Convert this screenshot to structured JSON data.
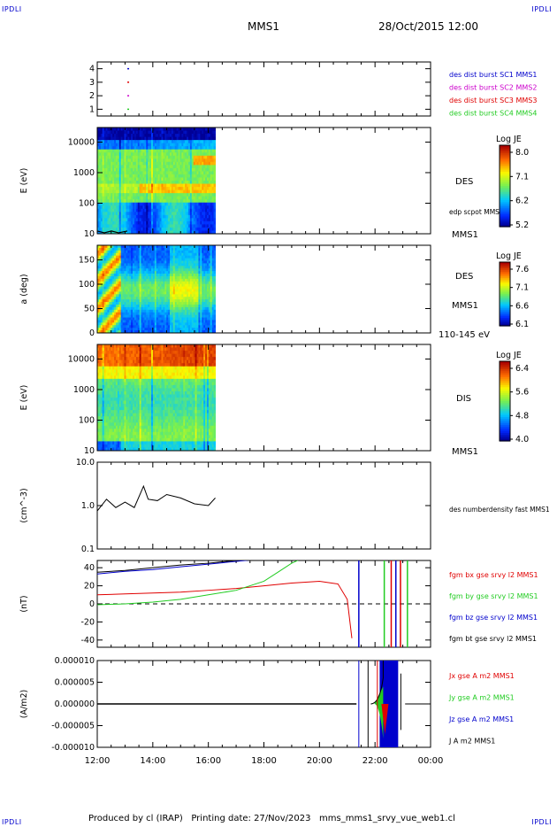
{
  "corner_tl": "IPDLI",
  "corner_tr": "IPDLI",
  "corner_bl": "IPDLI",
  "corner_br": "IPDLI",
  "header": {
    "spacecraft": "MMS1",
    "datetime": "28/Oct/2015 12:00"
  },
  "footer": {
    "text": "Produced by cl (IRAP)   Printing date: 27/Nov/2023   mms_mms1_srvy_vue_web1.cl"
  },
  "colors": {
    "red": "#e00000",
    "green": "#22cc22",
    "blue": "#0000cc",
    "magenta": "#cc00cc",
    "black": "#000000"
  },
  "chart_data": [
    {
      "panel": "burst-intervals",
      "type": "scatter",
      "yticks": [
        "1",
        "2",
        "3",
        "4"
      ],
      "ylim": [
        0.5,
        4.5
      ],
      "legend": [
        {
          "label": "des dist burst SC1 MMS1",
          "color": "#0000cc"
        },
        {
          "label": "des dist burst SC2 MMS2",
          "color": "#cc00cc"
        },
        {
          "label": "des dist burst SC3 MMS3",
          "color": "#e00000"
        },
        {
          "label": "des dist burst SC4 MMS4",
          "color": "#22cc22"
        }
      ],
      "points": [
        {
          "x": "13:05",
          "y": 4,
          "color": "#0000cc"
        },
        {
          "x": "13:05",
          "y": 3,
          "color": "#e00000"
        },
        {
          "x": "13:05",
          "y": 2,
          "color": "#cc00cc"
        },
        {
          "x": "13:05",
          "y": 1,
          "color": "#22cc22"
        }
      ]
    },
    {
      "panel": "des-energy-spectrogram",
      "type": "heatmap",
      "ylabel": "E (eV)",
      "yticks": [
        "10",
        "100",
        "1000",
        "10000"
      ],
      "ylim": [
        10,
        30000
      ],
      "yscale": "log",
      "data_end": "16:15",
      "label": "DES",
      "overlay_label": "edp scpot MMS1",
      "sc_label": "MMS1",
      "colorbar": {
        "title": "Log JE",
        "ticks": [
          "8.0",
          "7.1",
          "6.2",
          "5.2"
        ]
      }
    },
    {
      "panel": "des-pitch-angle",
      "type": "heatmap",
      "ylabel": "a (deg)",
      "yticks": [
        "0",
        "50",
        "100",
        "150"
      ],
      "ylim": [
        0,
        180
      ],
      "data_end": "16:15",
      "label": "DES",
      "sc_label": "MMS1",
      "energy_range": "110-145 eV",
      "colorbar": {
        "title": "Log JE",
        "ticks": [
          "7.6",
          "7.1",
          "6.6",
          "6.1"
        ]
      }
    },
    {
      "panel": "dis-energy-spectrogram",
      "type": "heatmap",
      "ylabel": "E (eV)",
      "yticks": [
        "10",
        "100",
        "1000",
        "10000"
      ],
      "ylim": [
        10,
        30000
      ],
      "yscale": "log",
      "data_end": "16:15",
      "label": "DIS",
      "sc_label": "MMS1",
      "colorbar": {
        "title": "Log JE",
        "ticks": [
          "6.4",
          "5.6",
          "4.8",
          "4.0"
        ]
      }
    },
    {
      "panel": "density",
      "type": "line",
      "ylabel": "(cm^-3)",
      "yticks": [
        "0.1",
        "1.0",
        "10.0"
      ],
      "ylim": [
        0.1,
        10
      ],
      "yscale": "log",
      "series": [
        {
          "name": "des numberdensity fast MMS1",
          "color": "#000000",
          "x": [
            "12:00",
            "12:20",
            "12:40",
            "13:00",
            "13:20",
            "13:40",
            "13:50",
            "14:10",
            "14:30",
            "15:00",
            "15:30",
            "16:00",
            "16:15"
          ],
          "y": [
            0.75,
            1.4,
            0.9,
            1.2,
            0.9,
            2.8,
            1.4,
            1.3,
            1.8,
            1.5,
            1.1,
            1.0,
            1.5
          ]
        }
      ]
    },
    {
      "panel": "magnetic-field",
      "type": "line",
      "ylabel": "(nT)",
      "yticks": [
        "-40",
        "-20",
        "0",
        "20",
        "40"
      ],
      "ylim": [
        -48,
        48
      ],
      "series": [
        {
          "name": "fgm bx gse srvy l2 MMS1",
          "color": "#e00000",
          "x": [
            "12:00",
            "13:00",
            "14:00",
            "15:00",
            "16:00",
            "17:00",
            "18:00",
            "19:00",
            "20:00",
            "20:40",
            "21:00",
            "21:10"
          ],
          "y": [
            10,
            11,
            12,
            13,
            15,
            17,
            20,
            23,
            25,
            22,
            5,
            -38
          ]
        },
        {
          "name": "fgm by gse srvy l2 MMS1",
          "color": "#22cc22",
          "x": [
            "12:00",
            "13:00",
            "14:00",
            "15:00",
            "16:00",
            "17:00",
            "18:00",
            "18:30",
            "19:00",
            "19:30"
          ],
          "y": [
            -1,
            0,
            2,
            5,
            10,
            15,
            25,
            35,
            45,
            52
          ]
        },
        {
          "name": "fgm bz gse srvy l2 MMS1",
          "color": "#0000cc",
          "x": [
            "12:00",
            "13:00",
            "14:00",
            "15:00",
            "16:00",
            "17:00",
            "18:00"
          ],
          "y": [
            33,
            36,
            38,
            41,
            44,
            47,
            50
          ]
        },
        {
          "name": "fgm bt gse srvy l2 MMS1",
          "color": "#000000",
          "x": [
            "12:00",
            "13:00",
            "14:00",
            "15:00",
            "16:00",
            "17:00",
            "18:00"
          ],
          "y": [
            35,
            37,
            40,
            43,
            45,
            48,
            51
          ]
        }
      ]
    },
    {
      "panel": "current-density",
      "type": "line",
      "ylabel": "(A/m2)",
      "yticks": [
        "-0.000010",
        "-0.000005",
        "0.000000",
        "0.000005",
        "0.000010"
      ],
      "ylim": [
        -1e-05,
        1e-05
      ],
      "series": [
        {
          "name": "Jx gse A m2 MMS1",
          "color": "#e00000"
        },
        {
          "name": "Jy gse A m2 MMS1",
          "color": "#22cc22"
        },
        {
          "name": "Jz gse A m2 MMS1",
          "color": "#0000cc"
        },
        {
          "name": "J A m2 MMS1",
          "color": "#000000"
        }
      ]
    }
  ],
  "time_axis": {
    "ticks": [
      "12:00",
      "14:00",
      "16:00",
      "18:00",
      "20:00",
      "22:00",
      "00:00"
    ],
    "range": [
      "12:00",
      "00:00"
    ]
  }
}
